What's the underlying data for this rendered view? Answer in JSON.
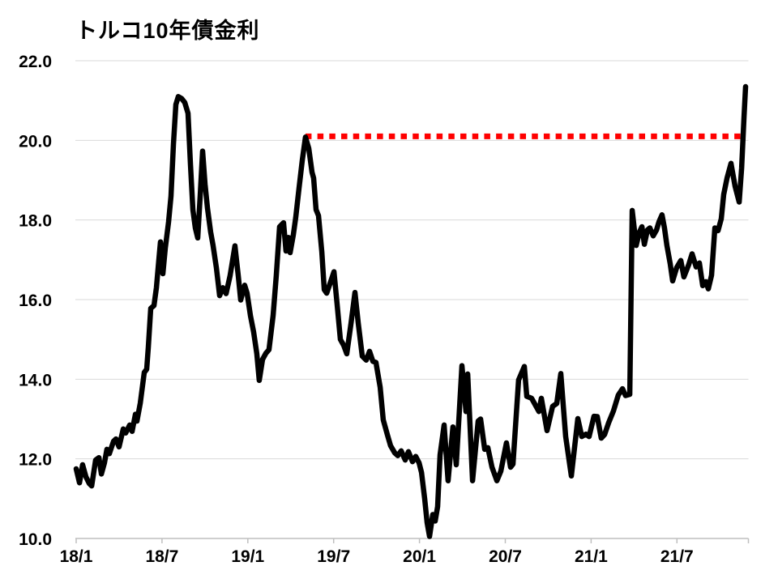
{
  "chart_data": {
    "type": "line",
    "title": "トルコ10年債金利",
    "xlabel": "",
    "ylabel": "",
    "x_axis": {
      "unit": "months since 2018-01",
      "tick_months": [
        0,
        6,
        12,
        18,
        24,
        30,
        36,
        42
      ],
      "tick_labels": [
        "18/1",
        "18/7",
        "19/1",
        "19/7",
        "20/1",
        "20/7",
        "21/1",
        "21/7"
      ],
      "xlim_months": [
        0,
        47
      ]
    },
    "y_axis": {
      "ticks": [
        10.0,
        12.0,
        14.0,
        16.0,
        18.0,
        20.0,
        22.0
      ],
      "tick_labels": [
        "10.0",
        "12.0",
        "14.0",
        "16.0",
        "18.0",
        "20.0",
        "22.0"
      ],
      "ylim": [
        10.0,
        22.0
      ]
    },
    "grid": "horizontal-light-gray",
    "legend": "none",
    "series": [
      {
        "name": "トルコ10年債金利",
        "color": "#000000",
        "style": "solid",
        "width": 6.5,
        "points": [
          [
            0,
            11.75
          ],
          [
            0.23,
            11.4
          ],
          [
            0.45,
            11.85
          ],
          [
            0.68,
            11.55
          ],
          [
            0.91,
            11.38
          ],
          [
            1.08,
            11.32
          ],
          [
            1.36,
            11.97
          ],
          [
            1.59,
            12.03
          ],
          [
            1.76,
            11.62
          ],
          [
            1.98,
            11.9
          ],
          [
            2.15,
            12.24
          ],
          [
            2.32,
            12.13
          ],
          [
            2.61,
            12.44
          ],
          [
            2.78,
            12.5
          ],
          [
            3,
            12.3
          ],
          [
            3.29,
            12.75
          ],
          [
            3.46,
            12.65
          ],
          [
            3.74,
            12.85
          ],
          [
            3.91,
            12.69
          ],
          [
            4.14,
            13.12
          ],
          [
            4.25,
            12.95
          ],
          [
            4.48,
            13.4
          ],
          [
            4.76,
            14.17
          ],
          [
            4.93,
            14.25
          ],
          [
            5.04,
            14.8
          ],
          [
            5.21,
            15.78
          ],
          [
            5.44,
            15.85
          ],
          [
            5.61,
            16.3
          ],
          [
            5.78,
            17
          ],
          [
            5.89,
            17.45
          ],
          [
            6.06,
            16.65
          ],
          [
            6.23,
            17.3
          ],
          [
            6.46,
            17.95
          ],
          [
            6.63,
            18.6
          ],
          [
            6.8,
            19.9
          ],
          [
            6.97,
            20.9
          ],
          [
            7.14,
            21.1
          ],
          [
            7.37,
            21.05
          ],
          [
            7.59,
            20.95
          ],
          [
            7.82,
            20.68
          ],
          [
            7.99,
            19.4
          ],
          [
            8.16,
            18.26
          ],
          [
            8.33,
            17.8
          ],
          [
            8.5,
            17.55
          ],
          [
            8.67,
            18.6
          ],
          [
            8.84,
            19.73
          ],
          [
            9.01,
            18.9
          ],
          [
            9.18,
            18.3
          ],
          [
            9.4,
            17.7
          ],
          [
            9.57,
            17.36
          ],
          [
            9.8,
            16.8
          ],
          [
            10.03,
            16.1
          ],
          [
            10.25,
            16.3
          ],
          [
            10.48,
            16.15
          ],
          [
            10.76,
            16.6
          ],
          [
            11.1,
            17.35
          ],
          [
            11.33,
            16.6
          ],
          [
            11.5,
            15.99
          ],
          [
            11.78,
            16.36
          ],
          [
            11.95,
            16.16
          ],
          [
            12.18,
            15.6
          ],
          [
            12.41,
            15.18
          ],
          [
            12.63,
            14.64
          ],
          [
            12.8,
            13.97
          ],
          [
            13.03,
            14.5
          ],
          [
            13.26,
            14.65
          ],
          [
            13.48,
            14.74
          ],
          [
            13.77,
            15.6
          ],
          [
            13.99,
            16.6
          ],
          [
            14.22,
            17.83
          ],
          [
            14.5,
            17.93
          ],
          [
            14.67,
            17.22
          ],
          [
            14.84,
            17.56
          ],
          [
            14.96,
            17.18
          ],
          [
            15.18,
            17.62
          ],
          [
            15.35,
            18.06
          ],
          [
            15.58,
            18.8
          ],
          [
            15.81,
            19.5
          ],
          [
            16.03,
            20.08
          ],
          [
            16.26,
            19.8
          ],
          [
            16.49,
            19.2
          ],
          [
            16.6,
            19.05
          ],
          [
            16.77,
            18.26
          ],
          [
            16.94,
            18.11
          ],
          [
            17.17,
            17.2
          ],
          [
            17.34,
            16.25
          ],
          [
            17.51,
            16.16
          ],
          [
            17.79,
            16.45
          ],
          [
            18.02,
            16.7
          ],
          [
            18.24,
            15.9
          ],
          [
            18.47,
            15
          ],
          [
            18.7,
            14.85
          ],
          [
            18.92,
            14.64
          ],
          [
            19.21,
            15.4
          ],
          [
            19.49,
            16.18
          ],
          [
            19.72,
            15.4
          ],
          [
            20,
            14.58
          ],
          [
            20.28,
            14.48
          ],
          [
            20.51,
            14.7
          ],
          [
            20.74,
            14.45
          ],
          [
            20.96,
            14.42
          ],
          [
            21.25,
            13.8
          ],
          [
            21.47,
            12.98
          ],
          [
            21.76,
            12.6
          ],
          [
            21.98,
            12.33
          ],
          [
            22.27,
            12.15
          ],
          [
            22.49,
            12.08
          ],
          [
            22.72,
            12.2
          ],
          [
            23,
            11.97
          ],
          [
            23.23,
            12.18
          ],
          [
            23.51,
            11.93
          ],
          [
            23.74,
            12.06
          ],
          [
            23.97,
            11.9
          ],
          [
            24.14,
            11.66
          ],
          [
            24.36,
            11
          ],
          [
            24.53,
            10.4
          ],
          [
            24.7,
            10.05
          ],
          [
            24.93,
            10.6
          ],
          [
            25.1,
            10.44
          ],
          [
            25.27,
            10.8
          ],
          [
            25.44,
            12.1
          ],
          [
            25.72,
            12.85
          ],
          [
            26,
            11.45
          ],
          [
            26.34,
            12.8
          ],
          [
            26.57,
            11.85
          ],
          [
            26.97,
            14.34
          ],
          [
            27.25,
            13.19
          ],
          [
            27.37,
            14.13
          ],
          [
            27.71,
            11.45
          ],
          [
            28.1,
            12.95
          ],
          [
            28.27,
            13
          ],
          [
            28.56,
            12.24
          ],
          [
            28.78,
            12.28
          ],
          [
            29.07,
            11.79
          ],
          [
            29.41,
            11.45
          ],
          [
            29.69,
            11.69
          ],
          [
            30.08,
            12.4
          ],
          [
            30.37,
            11.79
          ],
          [
            30.54,
            11.87
          ],
          [
            30.93,
            13.98
          ],
          [
            31.33,
            14.32
          ],
          [
            31.5,
            13.57
          ],
          [
            31.84,
            13.52
          ],
          [
            32.35,
            13.19
          ],
          [
            32.52,
            13.52
          ],
          [
            32.92,
            12.71
          ],
          [
            33.31,
            13.32
          ],
          [
            33.6,
            13.39
          ],
          [
            33.88,
            14.14
          ],
          [
            34.22,
            12.56
          ],
          [
            34.62,
            11.57
          ],
          [
            35.07,
            13.01
          ],
          [
            35.35,
            12.56
          ],
          [
            35.64,
            12.62
          ],
          [
            35.86,
            12.56
          ],
          [
            36.2,
            13.07
          ],
          [
            36.43,
            13.06
          ],
          [
            36.71,
            12.52
          ],
          [
            36.94,
            12.61
          ],
          [
            37.22,
            12.9
          ],
          [
            37.56,
            13.2
          ],
          [
            37.9,
            13.6
          ],
          [
            38.19,
            13.76
          ],
          [
            38.41,
            13.59
          ],
          [
            38.7,
            13.62
          ],
          [
            38.87,
            18.24
          ],
          [
            39.15,
            17.36
          ],
          [
            39.38,
            17.7
          ],
          [
            39.55,
            17.83
          ],
          [
            39.72,
            17.39
          ],
          [
            39.94,
            17.75
          ],
          [
            40.11,
            17.8
          ],
          [
            40.34,
            17.6
          ],
          [
            40.57,
            17.75
          ],
          [
            40.74,
            17.95
          ],
          [
            40.96,
            18.13
          ],
          [
            41.13,
            17.8
          ],
          [
            41.3,
            17.36
          ],
          [
            41.53,
            16.9
          ],
          [
            41.7,
            16.47
          ],
          [
            41.98,
            16.8
          ],
          [
            42.27,
            16.98
          ],
          [
            42.49,
            16.57
          ],
          [
            42.83,
            16.88
          ],
          [
            43.06,
            17.15
          ],
          [
            43.34,
            16.82
          ],
          [
            43.57,
            16.92
          ],
          [
            43.8,
            16.35
          ],
          [
            44.02,
            16.45
          ],
          [
            44.19,
            16.27
          ],
          [
            44.42,
            16.61
          ],
          [
            44.65,
            17.8
          ],
          [
            44.87,
            17.73
          ],
          [
            45.1,
            18.03
          ],
          [
            45.27,
            18.64
          ],
          [
            45.5,
            19.05
          ],
          [
            45.78,
            19.42
          ],
          [
            46.06,
            18.85
          ],
          [
            46.35,
            18.45
          ],
          [
            46.52,
            19.3
          ],
          [
            46.69,
            20.6
          ],
          [
            46.8,
            21.35
          ]
        ]
      },
      {
        "name": "red-dotted-reference-line-at-2019-high",
        "color": "#ff0000",
        "style": "dotted",
        "width": 7,
        "value": 20.1,
        "points": [
          [
            16.03,
            20.1
          ],
          [
            46.5,
            20.1
          ]
        ]
      }
    ],
    "annotations": {
      "reference_level": 20.1,
      "series_final_value": 21.35
    }
  },
  "colors": {
    "background": "#ffffff",
    "gridline": "#d9d9d9",
    "axis": "#bfbfbf",
    "series": "#000000",
    "reference": "#ff0000",
    "text": "#000000"
  }
}
